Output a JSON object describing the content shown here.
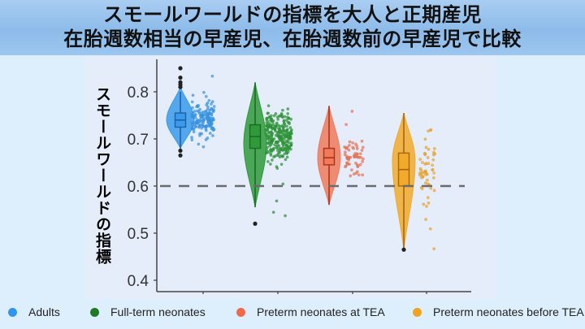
{
  "header": {
    "title_line1": "スモールワールドの指標を大人と正期産児",
    "title_line2": "在胎週数相当の早産児、在胎週数前の早産児で比較"
  },
  "chart_data": {
    "type": "violin",
    "title": "スモールワールドの指標を大人と正期産児 在胎週数相当の早産児、在胎週数前の早産児で比較",
    "xlabel": "",
    "ylabel": "スモールワールドの指標",
    "ylim": [
      0.38,
      0.86
    ],
    "yticks": [
      0.4,
      0.5,
      0.6,
      0.7,
      0.8
    ],
    "ytick_labels": [
      "0.4",
      "0.5",
      "0.6",
      "0.7",
      "0.8"
    ],
    "reference_line": {
      "y": 0.6,
      "style": "dashed",
      "color": "#6b6b6b"
    },
    "grid": false,
    "legend_position": "bottom",
    "categories": [
      "Adults",
      "Full-term neonates",
      "Preterm neonates at TEA",
      "Preterm neonates before TEA"
    ],
    "series": [
      {
        "name": "Adults",
        "color": "#3a9bea",
        "dark": "#1f5fa8",
        "min": 0.68,
        "q1": 0.725,
        "median": 0.74,
        "q3": 0.755,
        "max": 0.8,
        "violin_top": 0.81,
        "violin_bottom": 0.68,
        "violin_peak": 0.74,
        "violin_halfwidth": 17,
        "outliers": [
          0.85,
          0.83,
          0.82,
          0.815,
          0.81,
          0.675,
          0.665
        ],
        "points_range": [
          0.66,
          0.85
        ],
        "points_n": 150
      },
      {
        "name": "Full-term neonates",
        "color": "#2f9a3a",
        "dark": "#1c6b24",
        "min": 0.555,
        "q1": 0.68,
        "median": 0.705,
        "q3": 0.73,
        "max": 0.82,
        "violin_top": 0.82,
        "violin_bottom": 0.555,
        "violin_peak": 0.69,
        "violin_halfwidth": 14,
        "outliers": [
          0.52
        ],
        "points_range": [
          0.52,
          0.825
        ],
        "points_n": 260
      },
      {
        "name": "Preterm neonates at TEA",
        "color": "#f07a5a",
        "dark": "#a8321c",
        "min": 0.56,
        "q1": 0.645,
        "median": 0.66,
        "q3": 0.68,
        "max": 0.77,
        "violin_top": 0.77,
        "violin_bottom": 0.56,
        "violin_peak": 0.66,
        "violin_halfwidth": 14,
        "outliers": [],
        "points_range": [
          0.56,
          0.77
        ],
        "points_n": 60
      },
      {
        "name": "Preterm neonates before TEA",
        "color": "#f2aa2a",
        "dark": "#a8660c",
        "min": 0.465,
        "q1": 0.6,
        "median": 0.635,
        "q3": 0.67,
        "max": 0.755,
        "violin_top": 0.755,
        "violin_bottom": 0.465,
        "violin_peak": 0.655,
        "violin_halfwidth": 14,
        "outliers": [
          0.465
        ],
        "points_range": [
          0.465,
          0.76
        ],
        "points_n": 55
      }
    ]
  },
  "legend": {
    "items": [
      {
        "label": "Adults",
        "color": "#2f95ee"
      },
      {
        "label": "Full-term neonates",
        "color": "#1e7a25"
      },
      {
        "label": "Preterm neonates at TEA",
        "color": "#f0694a"
      },
      {
        "label": "Preterm neonates before TEA",
        "color": "#efa321"
      }
    ]
  }
}
